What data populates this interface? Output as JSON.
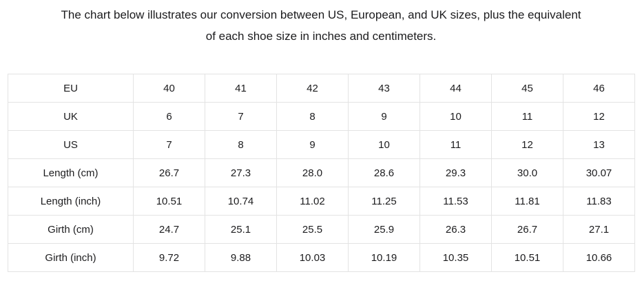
{
  "page": {
    "background": "#ffffff",
    "text_color": "#1c1c1e",
    "border_color": "#e3e3e3"
  },
  "title": {
    "line1": "The chart below illustrates our conversion between US, European, and UK sizes, plus the equivalent",
    "line2": "of each shoe size in inches and centimeters."
  },
  "table": {
    "rows": [
      {
        "label": "EU",
        "values": [
          "40",
          "41",
          "42",
          "43",
          "44",
          "45",
          "46"
        ]
      },
      {
        "label": "UK",
        "values": [
          "6",
          "7",
          "8",
          "9",
          "10",
          "11",
          "12"
        ]
      },
      {
        "label": "US",
        "values": [
          "7",
          "8",
          "9",
          "10",
          "11",
          "12",
          "13"
        ]
      },
      {
        "label": "Length (cm)",
        "values": [
          "26.7",
          "27.3",
          "28.0",
          "28.6",
          "29.3",
          "30.0",
          "30.07"
        ]
      },
      {
        "label": "Length (inch)",
        "values": [
          "10.51",
          "10.74",
          "11.02",
          "11.25",
          "11.53",
          "11.81",
          "11.83"
        ]
      },
      {
        "label": "Girth (cm)",
        "values": [
          "24.7",
          "25.1",
          "25.5",
          "25.9",
          "26.3",
          "26.7",
          "27.1"
        ]
      },
      {
        "label": "Girth (inch)",
        "values": [
          "9.72",
          "9.88",
          "10.03",
          "10.19",
          "10.35",
          "10.51",
          "10.66"
        ]
      }
    ]
  }
}
